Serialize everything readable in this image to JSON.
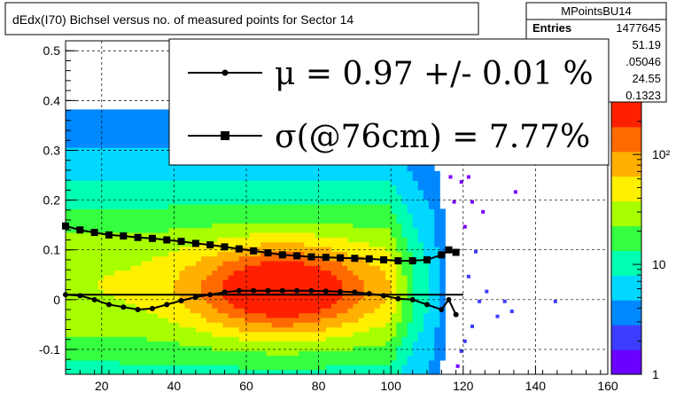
{
  "chart_data": {
    "type": "heatmap",
    "title": "dEdx(I70) Bichsel versus no. of measured points for Sector 14",
    "xlabel": "",
    "ylabel": "",
    "xlim": [
      10,
      160
    ],
    "ylim": [
      -0.15,
      0.52
    ],
    "x_ticks": [
      {
        "value": 20,
        "label": "20"
      },
      {
        "value": 40,
        "label": "40"
      },
      {
        "value": 60,
        "label": "60"
      },
      {
        "value": 80,
        "label": "80"
      },
      {
        "value": 100,
        "label": "100"
      },
      {
        "value": 120,
        "label": "120"
      },
      {
        "value": 140,
        "label": "140"
      },
      {
        "value": 160,
        "label": "160"
      }
    ],
    "y_ticks": [
      {
        "value": -0.1,
        "label": "-0.1"
      },
      {
        "value": 0,
        "label": "0"
      },
      {
        "value": 0.1,
        "label": "0.1"
      },
      {
        "value": 0.2,
        "label": "0.2"
      },
      {
        "value": 0.3,
        "label": "0.3"
      },
      {
        "value": 0.4,
        "label": "0.4"
      },
      {
        "value": 0.5,
        "label": "0.5"
      }
    ],
    "grid": true,
    "colorbar": {
      "scale": "log",
      "range": [
        1,
        300
      ],
      "ticks": [
        {
          "value": 1,
          "label": "1"
        },
        {
          "value": 10,
          "label": "10"
        },
        {
          "value": 100,
          "label": "10²"
        }
      ],
      "colors": [
        "#6a00ff",
        "#3d3dff",
        "#0088ff",
        "#00d8ff",
        "#00ffb0",
        "#35ff40",
        "#a8ff00",
        "#fff000",
        "#ffb000",
        "#ff6a00",
        "#ff2000"
      ]
    },
    "stats": {
      "name": "MPointsBU14",
      "rows": [
        {
          "label": "Entries",
          "value": "1477645"
        },
        {
          "label": "",
          "value": "51.19"
        },
        {
          "label": "",
          "value": ".05046"
        },
        {
          "label": "",
          "value": "24.55"
        },
        {
          "label": "",
          "value": "0.1323"
        }
      ]
    },
    "legend": {
      "placement": "top",
      "entries": [
        {
          "text": "μ  =  0.97 +/-  0.01 %",
          "marker": "circle"
        },
        {
          "text": "σ(@76cm) =  7.77%",
          "marker": "square"
        }
      ]
    },
    "series": [
      {
        "marker": "circle",
        "x": [
          10,
          14,
          18,
          22,
          26,
          30,
          34,
          38,
          42,
          46,
          50,
          54,
          58,
          62,
          66,
          70,
          74,
          78,
          82,
          86,
          90,
          94,
          98,
          102,
          106,
          110,
          114,
          116,
          118
        ],
        "y": [
          0.01,
          0.008,
          0.0,
          -0.01,
          -0.015,
          -0.02,
          -0.018,
          -0.01,
          -0.002,
          0.005,
          0.01,
          0.015,
          0.018,
          0.018,
          0.018,
          0.018,
          0.018,
          0.018,
          0.017,
          0.016,
          0.015,
          0.012,
          0.008,
          0.002,
          0.0,
          -0.01,
          -0.02,
          0.0,
          -0.03
        ]
      },
      {
        "marker": "square",
        "x": [
          10,
          14,
          18,
          22,
          26,
          30,
          34,
          38,
          42,
          46,
          50,
          54,
          58,
          62,
          66,
          70,
          74,
          78,
          82,
          86,
          90,
          94,
          98,
          102,
          106,
          110,
          114,
          116,
          118
        ],
        "y": [
          0.148,
          0.14,
          0.135,
          0.13,
          0.128,
          0.125,
          0.123,
          0.12,
          0.117,
          0.113,
          0.11,
          0.106,
          0.102,
          0.098,
          0.094,
          0.09,
          0.088,
          0.086,
          0.085,
          0.084,
          0.083,
          0.082,
          0.08,
          0.078,
          0.078,
          0.08,
          0.09,
          0.1,
          0.095
        ]
      },
      {
        "marker": "line",
        "x": [
          10,
          120
        ],
        "y": [
          0.01,
          0.01
        ]
      }
    ]
  }
}
